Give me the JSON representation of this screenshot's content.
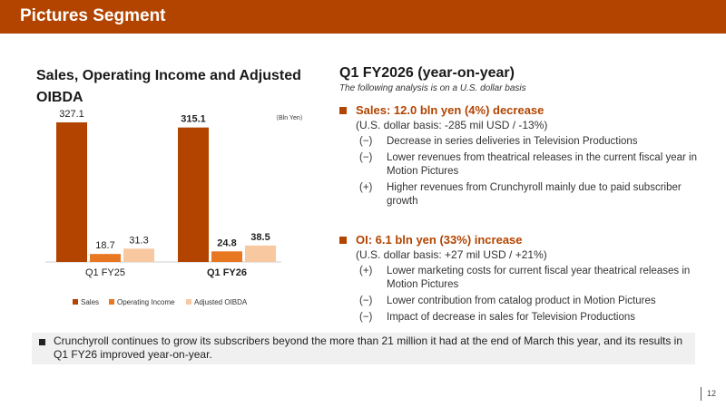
{
  "header": {
    "title": "Pictures Segment"
  },
  "chart_data": {
    "type": "bar",
    "title": "Sales, Operating Income and Adjusted OIBDA",
    "unit_note": "（Bln Yen）",
    "categories": [
      "Q1 FY25",
      "Q1 FY26"
    ],
    "series": [
      {
        "name": "Sales",
        "values": [
          327.1,
          315.1
        ],
        "color": "#b24400"
      },
      {
        "name": "Operating Income",
        "values": [
          18.7,
          24.8
        ],
        "color": "#e87722"
      },
      {
        "name": "Adjusted OIBDA",
        "values": [
          31.3,
          38.5
        ],
        "color": "#f8c9a0"
      }
    ],
    "value_labels": [
      [
        "327.1",
        "18.7",
        "31.3"
      ],
      [
        "315.1",
        "24.8",
        "38.5"
      ]
    ],
    "ylim": [
      0,
      327.1
    ],
    "grid": false,
    "legend_position": "bottom"
  },
  "analysis": {
    "title": "Q1 FY2026 (year-on-year)",
    "subtitle": "The following analysis is on a U.S. dollar basis",
    "sales": {
      "heading": "Sales: 12.0 bln yen (4%) decrease",
      "basis": "(U.S. dollar basis: -285 mil USD / -13%)",
      "items": [
        {
          "marker": "(−)",
          "text": "Decrease in series deliveries in Television Productions"
        },
        {
          "marker": "(−)",
          "text": "Lower revenues from theatrical releases in the current fiscal year in Motion Pictures"
        },
        {
          "marker": "(+)",
          "text": "Higher revenues from Crunchyroll mainly due to paid subscriber growth"
        }
      ]
    },
    "oi": {
      "heading": "OI: 6.1 bln yen (33%) increase",
      "basis": "(U.S. dollar basis: +27 mil USD / +21%)",
      "items": [
        {
          "marker": "(+)",
          "text": "Lower marketing costs for current fiscal year theatrical releases in Motion Pictures"
        },
        {
          "marker": "(−)",
          "text": "Lower contribution from catalog product in Motion Pictures"
        },
        {
          "marker": "(−)",
          "text": "Impact of decrease in sales for Television Productions"
        }
      ]
    }
  },
  "footer": {
    "note": "Crunchyroll continues to grow its subscribers beyond the more than 21 million it had at the end of March this year, and its results in Q1 FY26 improved year-on-year.",
    "page_number": "12"
  }
}
